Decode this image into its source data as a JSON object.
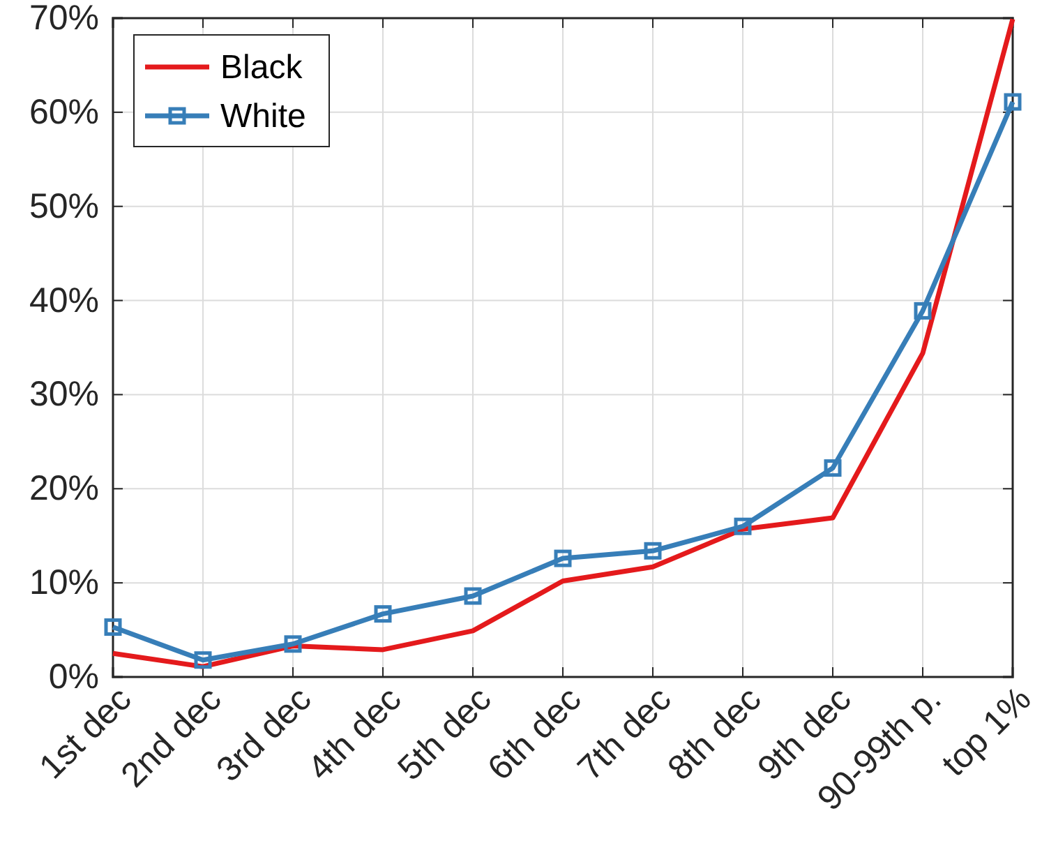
{
  "chart_data": {
    "type": "line",
    "categories": [
      "1st dec",
      "2nd dec",
      "3rd dec",
      "4th dec",
      "5th dec",
      "6th dec",
      "7th dec",
      "8th dec",
      "9th dec",
      "90-99th p.",
      "top 1%"
    ],
    "series": [
      {
        "name": "Black",
        "color": "#e41a1c",
        "marker": "none",
        "values": [
          2.5,
          1.1,
          3.3,
          2.9,
          4.9,
          10.2,
          11.7,
          15.7,
          16.9,
          34.4,
          69.9
        ]
      },
      {
        "name": "White",
        "color": "#377eb8",
        "marker": "square",
        "values": [
          5.3,
          1.8,
          3.5,
          6.7,
          8.6,
          12.6,
          13.4,
          16.0,
          22.2,
          38.9,
          61.1
        ]
      }
    ],
    "ylim": [
      0,
      70
    ],
    "yticks": [
      {
        "value": 0,
        "label": "0%"
      },
      {
        "value": 10,
        "label": "10%"
      },
      {
        "value": 20,
        "label": "20%"
      },
      {
        "value": 30,
        "label": "30%"
      },
      {
        "value": 40,
        "label": "40%"
      },
      {
        "value": 50,
        "label": "50%"
      },
      {
        "value": 60,
        "label": "60%"
      },
      {
        "value": 70,
        "label": "70%"
      }
    ],
    "grid": true,
    "legend": "top left",
    "line_style": "solid"
  }
}
